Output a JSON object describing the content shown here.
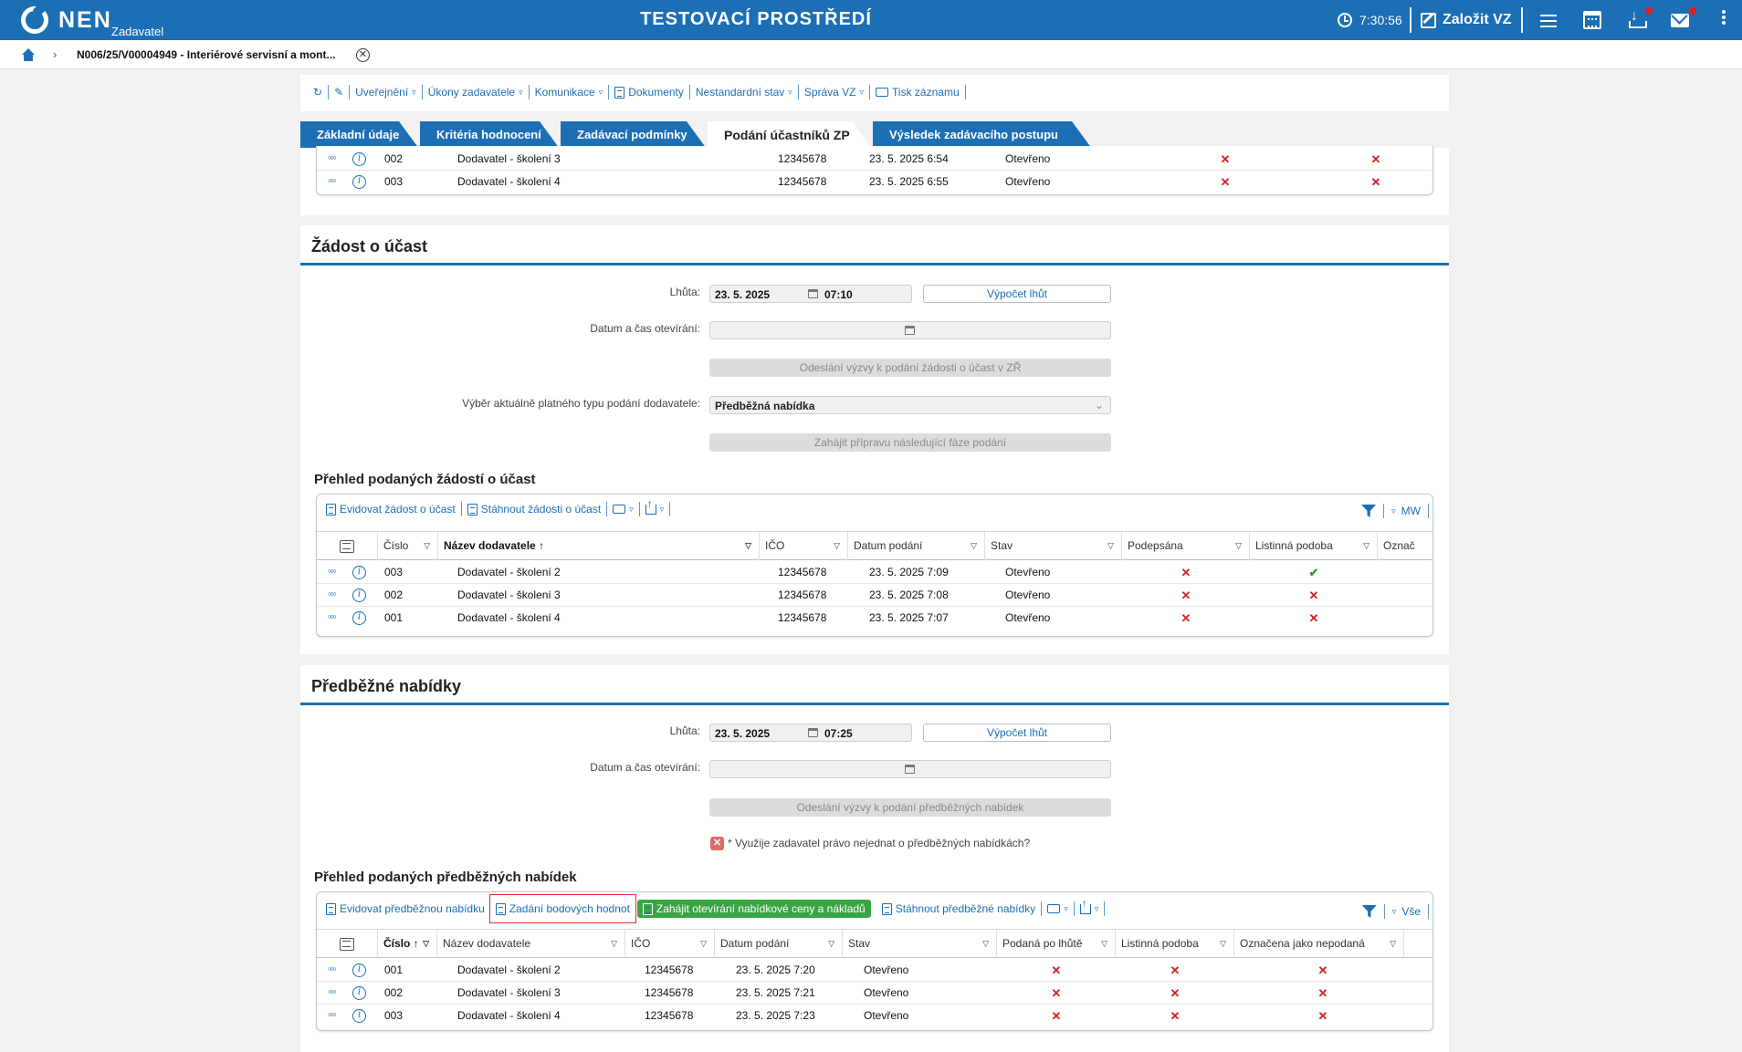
{
  "header": {
    "logo": "NEN",
    "logo_sub": "Zadavatel",
    "env_title": "TESTOVACÍ PROSTŘEDÍ",
    "clock": "7:30:56",
    "create_label": "Založit VZ"
  },
  "breadcrumb": {
    "title": "N006/25/V00004949 - Interiérové servisní a mont..."
  },
  "toolbar": {
    "items": [
      "Uveřejnění",
      "Úkony zadavatele",
      "Komunikace",
      "Dokumenty",
      "Nestandardní stav",
      "Správa VZ",
      "Tisk záznamu"
    ]
  },
  "tabs": [
    "Základní údaje",
    "Kritéria hodnocení",
    "Zadávací podmínky",
    "Podání účastníků ZP",
    "Výsledek zadávacího postupu"
  ],
  "top_table": {
    "rows": [
      {
        "num": "002",
        "name": "Dodavatel - školení 3",
        "ico": "12345678",
        "date": "23. 5. 2025 6:54",
        "state": "Otevřeno"
      },
      {
        "num": "003",
        "name": "Dodavatel - školení 4",
        "ico": "12345678",
        "date": "23. 5. 2025 6:55",
        "state": "Otevřeno"
      }
    ]
  },
  "zadost": {
    "title": "Žádost o účast",
    "deadline_label": "Lhůta:",
    "deadline_date": "23. 5. 2025",
    "deadline_time": "07:10",
    "calc_button": "Výpočet lhůt",
    "open_label": "Datum a čas otevírání:",
    "send_button": "Odeslání výzvy k podání žádosti o účast v ZŘ",
    "type_label": "Výběr aktuálně platného typu podání dodavatele:",
    "type_value": "Předběžná nabídka",
    "next_phase_button": "Zahájit přípravu následující fáze podání",
    "list_title": "Přehled podaných žádostí o účast",
    "grid_actions": [
      "Evidovat žádost o účast",
      "Stáhnout žádosti o účast"
    ],
    "grid_right": "MW",
    "columns": [
      "Číslo",
      "Název dodavatele",
      "IČO",
      "Datum podání",
      "Stav",
      "Podepsána",
      "Listinná podoba",
      "Označ"
    ],
    "rows": [
      {
        "num": "003",
        "name": "Dodavatel - školení 2",
        "ico": "12345678",
        "date": "23. 5. 2025 7:09",
        "state": "Otevřeno",
        "signed": "x",
        "paper": "check"
      },
      {
        "num": "002",
        "name": "Dodavatel - školení 3",
        "ico": "12345678",
        "date": "23. 5. 2025 7:08",
        "state": "Otevřeno",
        "signed": "x",
        "paper": "x"
      },
      {
        "num": "001",
        "name": "Dodavatel - školení 4",
        "ico": "12345678",
        "date": "23. 5. 2025 7:07",
        "state": "Otevřeno",
        "signed": "x",
        "paper": "x"
      }
    ]
  },
  "predbezne": {
    "title": "Předběžné nabídky",
    "deadline_label": "Lhůta:",
    "deadline_date": "23. 5. 2025",
    "deadline_time": "07:25",
    "calc_button": "Výpočet lhůt",
    "open_label": "Datum a čas otevírání:",
    "send_button": "Odeslání výzvy k podání předběžných nabídek",
    "checkbox_label": "* Využije zadavatel právo nejednat o předběžných nabídkách?",
    "list_title": "Přehled podaných předběžných nabídek",
    "grid_actions": {
      "register": "Evidovat předběžnou nabídku",
      "points": "Zadání bodových hodnot",
      "open_prices": "Zahájit otevírání nabídkové ceny a nákladů",
      "download": "Stáhnout předběžné nabídky"
    },
    "grid_right": "Vše",
    "columns": [
      "Číslo",
      "Název dodavatele",
      "IČO",
      "Datum podání",
      "Stav",
      "Podaná po lhůtě",
      "Listinná podoba",
      "Označena jako nepodaná"
    ],
    "rows": [
      {
        "num": "001",
        "name": "Dodavatel - školení 2",
        "ico": "12345678",
        "date": "23. 5. 2025 7:20",
        "state": "Otevřeno"
      },
      {
        "num": "002",
        "name": "Dodavatel - školení 3",
        "ico": "12345678",
        "date": "23. 5. 2025 7:21",
        "state": "Otevřeno"
      },
      {
        "num": "003",
        "name": "Dodavatel - školení 4",
        "ico": "12345678",
        "date": "23. 5. 2025 7:23",
        "state": "Otevřeno"
      }
    ]
  },
  "colors": {
    "brand": "#1c6eb5",
    "green": "#3aa544",
    "error": "#d42020"
  }
}
